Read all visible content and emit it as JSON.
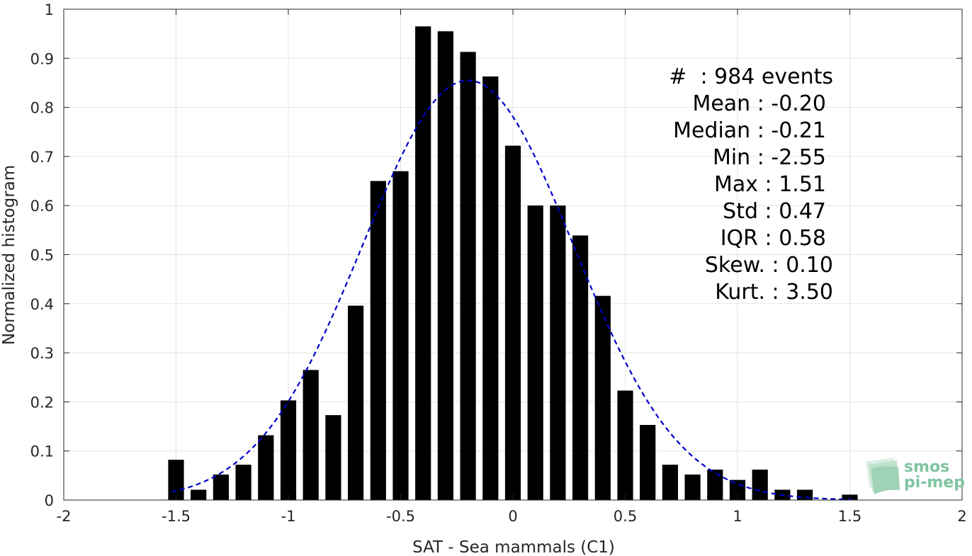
{
  "chart_data": {
    "type": "bar",
    "xlabel": "SAT - Sea mammals (C1)",
    "ylabel": "Normalized histogram",
    "xlim": [
      -2,
      2
    ],
    "ylim": [
      0,
      1
    ],
    "grid": true,
    "x_ticks": [
      -2,
      -1.5,
      -1,
      -0.5,
      0,
      0.5,
      1,
      1.5,
      2
    ],
    "x_tick_labels": [
      "-2",
      "-1.5",
      "-1",
      "-0.5",
      "0",
      "0.5",
      "1",
      "1.5",
      "2"
    ],
    "y_ticks": [
      0,
      0.1,
      0.2,
      0.3,
      0.4,
      0.5,
      0.6,
      0.7,
      0.8,
      0.9,
      1
    ],
    "y_tick_labels": [
      "0",
      "0.1",
      "0.2",
      "0.3",
      "0.4",
      "0.5",
      "0.6",
      "0.7",
      "0.8",
      "0.9",
      "1"
    ],
    "bar_width": 0.07,
    "bar_color": "#000000",
    "bars": {
      "x": [
        -1.5,
        -1.4,
        -1.3,
        -1.2,
        -1.1,
        -1.0,
        -0.9,
        -0.8,
        -0.7,
        -0.6,
        -0.5,
        -0.4,
        -0.3,
        -0.2,
        -0.1,
        0.0,
        0.1,
        0.2,
        0.3,
        0.4,
        0.5,
        0.6,
        0.7,
        0.8,
        0.9,
        1.0,
        1.1,
        1.2,
        1.3,
        1.5
      ],
      "values": [
        0.082,
        0.021,
        0.052,
        0.072,
        0.132,
        0.203,
        0.265,
        0.173,
        0.396,
        0.65,
        0.67,
        0.965,
        0.955,
        0.913,
        0.863,
        0.722,
        0.6,
        0.6,
        0.539,
        0.416,
        0.223,
        0.153,
        0.072,
        0.052,
        0.062,
        0.041,
        0.062,
        0.021,
        0.021,
        0.011
      ]
    },
    "fit_curve": {
      "style": "dashed",
      "color": "#0000cc",
      "mean": -0.2,
      "std": 0.47,
      "peak": 0.855,
      "x_range": [
        -1.52,
        1.52
      ]
    },
    "stats": {
      "count": "#  : 984 events",
      "mean": "Mean : -0.20",
      "median": "Median : -0.21",
      "min": "Min : -2.55",
      "max": "Max : 1.51",
      "std": "Std : 0.47",
      "iqr": "IQR : 0.58",
      "skew": "Skew. : 0.10",
      "kurt": "Kurt. : 3.50"
    }
  },
  "logo": {
    "line1": "smos",
    "line2": "pi-mep",
    "color": "#7fc4a0"
  }
}
